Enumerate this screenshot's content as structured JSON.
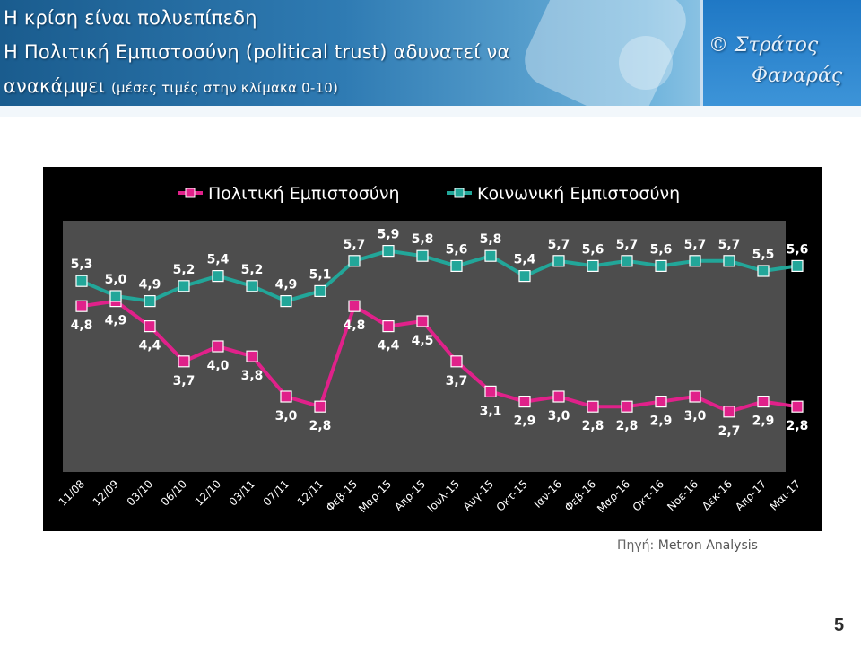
{
  "header": {
    "title_line1": "Η κρίση είναι πολυεπίπεδη",
    "title_line2": "Η Πολιτική Εμπιστοσύνη (political trust) αδυνατεί να",
    "title_line3": "ανακάμψει",
    "title_note": "(μέσες τιμές στην κλίμακα 0-10)",
    "author_line1": "© Στράτος",
    "author_line2": "Φαναράς"
  },
  "source": {
    "label": "Πηγή:",
    "value": "Metron Analysis"
  },
  "page_number": "5",
  "chart_data": {
    "type": "line",
    "categories": [
      "11/08",
      "12/09",
      "03/10",
      "06/10",
      "12/10",
      "03/11",
      "07/11",
      "12/11",
      "Φεβ-15",
      "Μαρ-15",
      "Απρ-15",
      "Ιουλ-15",
      "Αυγ-15",
      "Οκτ-15",
      "Ιαν-16",
      "Φεβ-16",
      "Μαρ-16",
      "Οκτ-16",
      "Νοε-16",
      "Δεκ-16",
      "Απρ-17",
      "Μάι-17"
    ],
    "series": [
      {
        "name": "Πολιτική Εμπιστοσύνη",
        "color": "#e0218a",
        "values": [
          4.8,
          4.9,
          4.4,
          3.7,
          4.0,
          3.8,
          3.0,
          2.8,
          4.8,
          4.4,
          4.5,
          3.7,
          3.1,
          2.9,
          3.0,
          2.8,
          2.8,
          2.9,
          3.0,
          2.7,
          2.9,
          2.8
        ],
        "labels": [
          "4,8",
          "4,9",
          "4,4",
          "3,7",
          "4,0",
          "3,8",
          "3,0",
          "2,8",
          "4,8",
          "4,4",
          "4,5",
          "3,7",
          "3,1",
          "2,9",
          "3,0",
          "2,8",
          "2,8",
          "2,9",
          "3,0",
          "2,7",
          "2,9",
          "2,8"
        ]
      },
      {
        "name": "Κοινωνική Εμπιστοσύνη",
        "color": "#22a699",
        "values": [
          5.3,
          5.0,
          4.9,
          5.2,
          5.4,
          5.2,
          4.9,
          5.1,
          5.7,
          5.9,
          5.8,
          5.6,
          5.8,
          5.4,
          5.7,
          5.6,
          5.7,
          5.6,
          5.7,
          5.7,
          5.5,
          5.6
        ],
        "labels": [
          "5,3",
          "5,0",
          "4,9",
          "5,2",
          "5,4",
          "5,2",
          "4,9",
          "5,1",
          "5,7",
          "5,9",
          "5,8",
          "5,6",
          "5,8",
          "5,4",
          "5,7",
          "5,6",
          "5,7",
          "5,6",
          "5,7",
          "5,7",
          "5,5",
          "5,6"
        ]
      }
    ],
    "ylim": [
      1.5,
      6.5
    ],
    "grid": false,
    "legend": "top"
  }
}
